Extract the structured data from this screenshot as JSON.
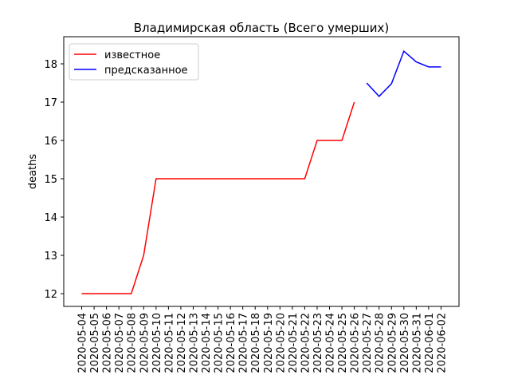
{
  "chart_data": {
    "type": "line",
    "title": "Владимирская область (Всего умерших)",
    "y_label": "deaths",
    "categories": [
      "2020-05-04",
      "2020-05-05",
      "2020-05-06",
      "2020-05-07",
      "2020-05-08",
      "2020-05-09",
      "2020-05-10",
      "2020-05-11",
      "2020-05-12",
      "2020-05-13",
      "2020-05-14",
      "2020-05-15",
      "2020-05-16",
      "2020-05-17",
      "2020-05-18",
      "2020-05-19",
      "2020-05-20",
      "2020-05-21",
      "2020-05-22",
      "2020-05-23",
      "2020-05-24",
      "2020-05-25",
      "2020-05-26",
      "2020-05-27",
      "2020-05-28",
      "2020-05-29",
      "2020-05-30",
      "2020-05-31",
      "2020-06-01",
      "2020-06-02"
    ],
    "series": [
      {
        "name": "известное",
        "color": "#ff0000",
        "values": [
          12,
          12,
          12,
          12,
          12,
          13,
          15,
          15,
          15,
          15,
          15,
          15,
          15,
          15,
          15,
          15,
          15,
          15,
          15,
          16,
          16,
          16,
          17,
          null,
          null,
          null,
          null,
          null,
          null,
          null
        ]
      },
      {
        "name": "предсказанное",
        "color": "#0000ff",
        "values": [
          null,
          null,
          null,
          null,
          null,
          null,
          null,
          null,
          null,
          null,
          null,
          null,
          null,
          null,
          null,
          null,
          null,
          null,
          null,
          null,
          null,
          null,
          null,
          17.5,
          17.15,
          17.48,
          18.33,
          18.05,
          17.92,
          17.92
        ]
      }
    ],
    "ylim": [
      11.667,
      18.708
    ],
    "yticks": [
      12,
      13,
      14,
      15,
      16,
      17,
      18
    ],
    "legend": "upper left"
  }
}
